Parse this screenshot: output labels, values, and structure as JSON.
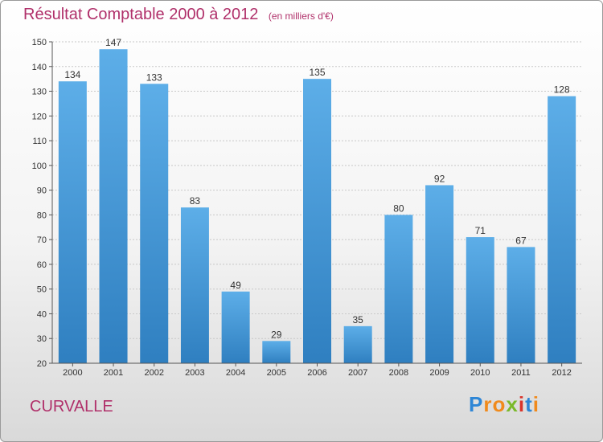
{
  "title": "Résultat Comptable 2000 à 2012",
  "subtitle": "(en milliers d'€)",
  "town": "CURVALLE",
  "logo": {
    "text": "Proxiti",
    "letters": [
      {
        "ch": "P",
        "color": "#2e86d6"
      },
      {
        "ch": "r",
        "color": "#f08a1c"
      },
      {
        "ch": "o",
        "color": "#f08a1c"
      },
      {
        "ch": "x",
        "color": "#7ab92a"
      },
      {
        "ch": "i",
        "color": "#d9342b"
      },
      {
        "ch": "t",
        "color": "#2e86d6"
      },
      {
        "ch": "i",
        "color": "#f08a1c"
      }
    ]
  },
  "colors": {
    "title": "#b0306a",
    "bar_light": "#5daee8",
    "bar_dark": "#2f7fc0"
  },
  "chart_data": {
    "type": "bar",
    "categories": [
      "2000",
      "2001",
      "2002",
      "2003",
      "2004",
      "2005",
      "2006",
      "2007",
      "2008",
      "2009",
      "2010",
      "2011",
      "2012"
    ],
    "values": [
      134,
      147,
      133,
      83,
      49,
      29,
      135,
      35,
      80,
      92,
      71,
      67,
      128
    ],
    "ylim": [
      20,
      150
    ],
    "yticks": [
      20,
      30,
      40,
      50,
      60,
      70,
      80,
      90,
      100,
      110,
      120,
      130,
      140,
      150
    ],
    "grid": true,
    "xlabel": "",
    "ylabel": ""
  }
}
